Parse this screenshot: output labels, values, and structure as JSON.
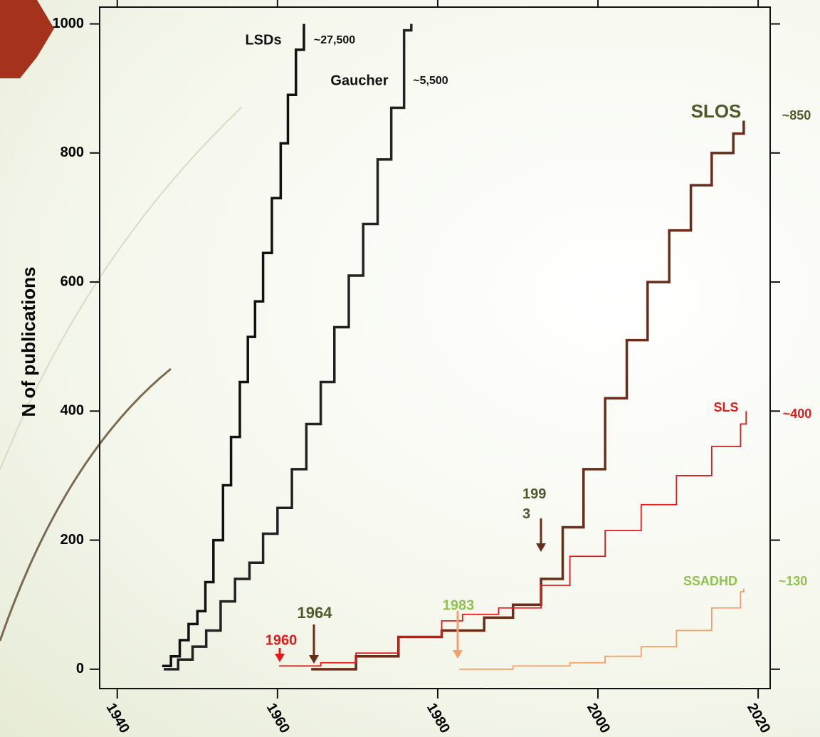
{
  "chart_data": {
    "type": "step",
    "y_label": "N of publications",
    "xlim": [
      1937.8,
      2021.5
    ],
    "ylim": [
      -30,
      1026
    ],
    "xticks": [
      1940,
      1960,
      1980,
      2000,
      2020
    ],
    "yticks": [
      0,
      200,
      400,
      600,
      800,
      1000
    ],
    "series": [
      {
        "name": "LSDs",
        "color": "#111111",
        "x": [
          1945.6,
          1946.7,
          1947.8,
          1948.9,
          1950.0,
          1951.0,
          1952.0,
          1953.2,
          1954.2,
          1955.3,
          1956.3,
          1957.2,
          1958.2,
          1959.3,
          1960.4,
          1961.3,
          1962.3,
          1963.3
        ],
        "values": [
          5,
          20,
          45,
          70,
          90,
          135,
          200,
          285,
          360,
          445,
          515,
          570,
          645,
          730,
          815,
          890,
          960,
          1000
        ]
      },
      {
        "name": "Gaucher",
        "color": "#222222",
        "x": [
          1945.8,
          1947.6,
          1949.4,
          1951.1,
          1952.9,
          1954.7,
          1956.5,
          1958.2,
          1960.0,
          1961.8,
          1963.6,
          1965.4,
          1967.1,
          1968.9,
          1970.7,
          1972.5,
          1974.2,
          1975.8,
          1976.7
        ],
        "values": [
          0,
          15,
          35,
          60,
          105,
          140,
          165,
          210,
          250,
          310,
          380,
          445,
          530,
          610,
          690,
          790,
          870,
          990,
          1000
        ]
      },
      {
        "name": "SLOS",
        "color": "#6b2d1a",
        "x": [
          1964.2,
          1969.8,
          1975.1,
          1980.5,
          1985.8,
          1989.4,
          1992.9,
          1995.6,
          1998.2,
          2000.9,
          2003.6,
          2006.2,
          2008.9,
          2011.6,
          2014.2,
          2016.9,
          2018.2
        ],
        "values": [
          0,
          20,
          50,
          60,
          80,
          100,
          140,
          220,
          310,
          420,
          510,
          600,
          680,
          750,
          800,
          830,
          850
        ]
      },
      {
        "name": "SLS",
        "color": "#e41a1a",
        "x": [
          1960.2,
          1965.4,
          1969.8,
          1975.1,
          1980.5,
          1983.1,
          1987.6,
          1992.9,
          1996.5,
          2000.9,
          2005.4,
          2009.8,
          2014.2,
          2017.8,
          2018.5
        ],
        "values": [
          5,
          10,
          25,
          50,
          75,
          85,
          95,
          130,
          175,
          215,
          255,
          300,
          345,
          380,
          400
        ]
      },
      {
        "name": "SSADHD",
        "color": "#f4a06a",
        "x": [
          1982.7,
          1989.4,
          1996.5,
          2000.9,
          2005.4,
          2009.8,
          2014.2,
          2017.8,
          2018.2
        ],
        "values": [
          0,
          5,
          10,
          20,
          35,
          60,
          95,
          120,
          125
        ]
      }
    ],
    "annotations": [
      "LSDs",
      "~27,500",
      "Gaucher",
      "~5,500",
      "SLOS",
      "~850",
      "SLS",
      "~400",
      "SSADHD",
      "~130",
      "1960",
      "1964",
      "1983",
      "1993"
    ]
  }
}
